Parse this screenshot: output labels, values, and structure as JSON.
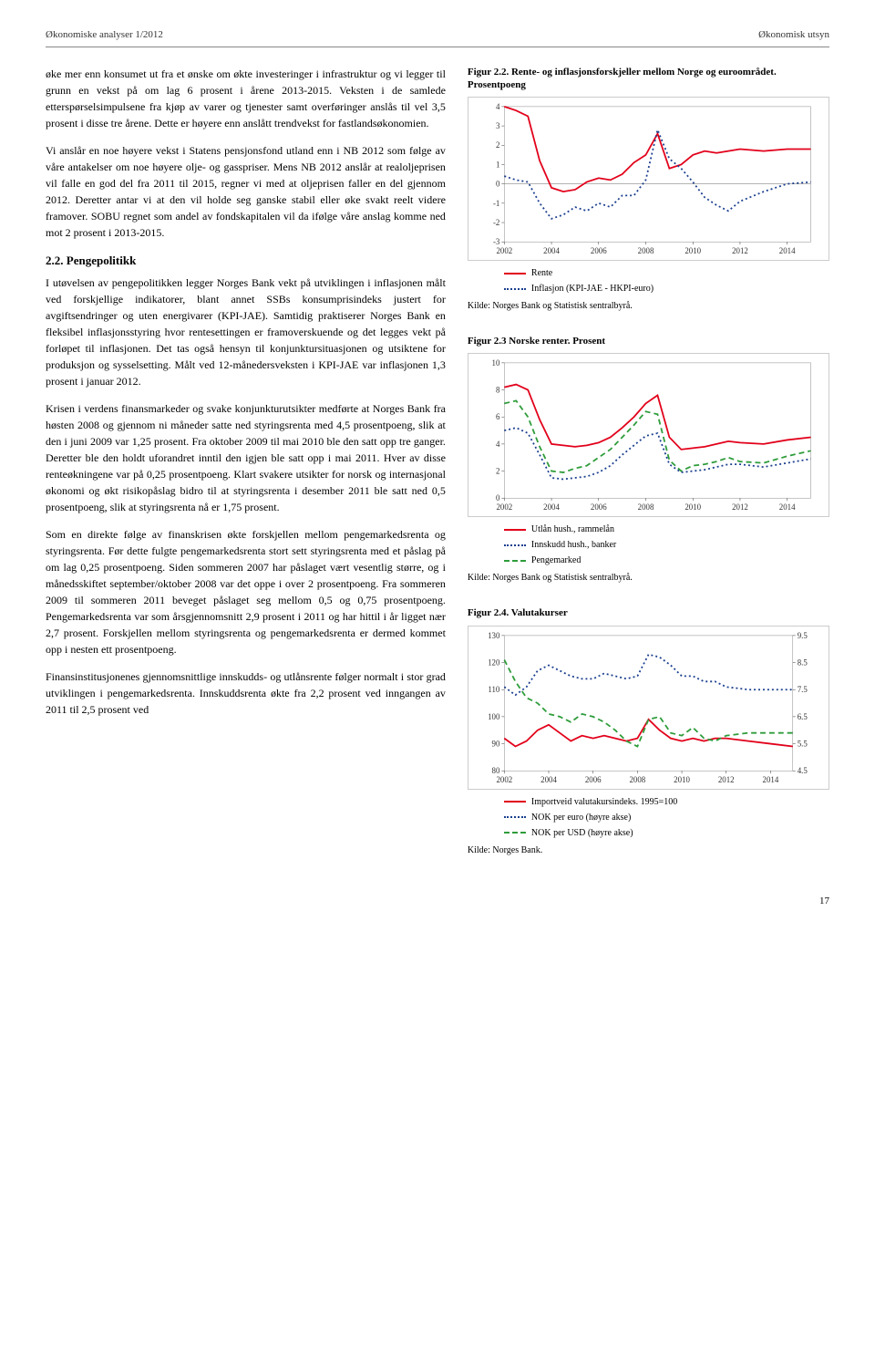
{
  "header": {
    "left": "Økonomiske analyser 1/2012",
    "right": "Økonomisk utsyn"
  },
  "paragraphs": {
    "p1": "øke mer enn konsumet ut fra et ønske om økte investeringer i infrastruktur og vi legger til grunn en vekst på om lag 6 prosent i årene 2013-2015. Veksten i de samlede etterspørselsimpulsene fra kjøp av varer og tjenester samt overføringer anslås til vel 3,5 prosent i disse tre årene. Dette er høyere enn anslått trendvekst for fastlandsøkonomien.",
    "p2": "Vi anslår en noe høyere vekst i Statens pensjonsfond utland enn i NB 2012 som følge av våre antakelser om noe høyere olje- og gasspriser. Mens NB 2012 anslår at realoljeprisen vil falle en god del fra 2011 til 2015, regner vi med at oljeprisen faller en del gjennom 2012. Deretter antar vi at den vil holde seg ganske stabil eller øke svakt reelt videre framover. SOBU regnet som andel av fondskapitalen vil da ifølge våre anslag komme ned mot 2 prosent i 2013-2015.",
    "h22": "2.2. Pengepolitikk",
    "p3": "I utøvelsen av pengepolitikken legger Norges Bank vekt på utviklingen i inflasjonen målt ved forskjellige indikatorer, blant annet SSBs konsumprisindeks justert for avgiftsendringer og uten energivarer (KPI-JAE). Samtidig praktiserer Norges Bank en fleksibel inflasjonsstyring hvor rentesettingen er framoverskuende og det legges vekt på forløpet til inflasjonen. Det tas også hensyn til konjunktursituasjonen og utsiktene for produksjon og sysselsetting. Målt ved 12-månedersveksten i KPI-JAE var inflasjonen 1,3 prosent i januar 2012.",
    "p4": "Krisen i verdens finansmarkeder og svake konjunkturutsikter medførte at Norges Bank fra høsten 2008 og gjennom ni måneder satte ned styringsrenta med 4,5 prosentpoeng, slik at den i juni 2009 var 1,25 prosent. Fra oktober 2009 til mai 2010 ble den satt opp tre ganger. Deretter ble den holdt uforandret inntil den igjen ble satt opp i mai 2011. Hver av disse renteøkningene var på 0,25 prosentpoeng. Klart svakere utsikter for norsk og internasjonal økonomi og økt risikopåslag bidro til at styringsrenta i desember 2011 ble satt ned 0,5 prosentpoeng, slik at styringsrenta nå er 1,75 prosent.",
    "p5": "Som en direkte følge av finanskrisen økte forskjellen mellom pengemarkedsrenta og styringsrenta. Før dette fulgte pengemarkedsrenta stort sett styringsrenta med et påslag på om lag 0,25 prosentpoeng. Siden sommeren 2007 har påslaget vært vesentlig større, og i månedsskiftet september/oktober 2008 var det oppe i over 2 prosentpoeng. Fra sommeren 2009 til sommeren 2011 beveget påslaget seg mellom 0,5 og 0,75 prosentpoeng. Pengemarkedsrenta var som årsgjennomsnitt 2,9 prosent i 2011 og har hittil i år ligget nær 2,7 prosent. Forskjellen mellom styringsrenta og pengemarkedsrenta er dermed kommet opp i nesten ett prosentpoeng.",
    "p6": "Finansinstitusjonenes gjennomsnittlige innskudds- og utlånsrente følger normalt i stor grad utviklingen i pengemarkedsrenta. Innskuddsrenta økte fra 2,2 prosent ved inngangen av 2011 til 2,5 prosent ved"
  },
  "chart22": {
    "title": "Figur 2.2. Rente- og inflasjonsforskjeller mellom Norge og euroområdet. Prosentpoeng",
    "ylim": [
      -3,
      4
    ],
    "yticks": [
      -3,
      -2,
      -1,
      0,
      1,
      2,
      3,
      4
    ],
    "xticks": [
      "2002",
      "2004",
      "2006",
      "2008",
      "2010",
      "2012",
      "2014"
    ],
    "series": [
      {
        "name": "Rente",
        "color": "#e2001a",
        "style": "solid",
        "points": [
          [
            2002,
            4
          ],
          [
            2002.5,
            3.8
          ],
          [
            2003,
            3.5
          ],
          [
            2003.5,
            1.2
          ],
          [
            2004,
            -0.2
          ],
          [
            2004.5,
            -0.4
          ],
          [
            2005,
            -0.3
          ],
          [
            2005.5,
            0.1
          ],
          [
            2006,
            0.3
          ],
          [
            2006.5,
            0.2
          ],
          [
            2007,
            0.5
          ],
          [
            2007.5,
            1.1
          ],
          [
            2008,
            1.5
          ],
          [
            2008.5,
            2.6
          ],
          [
            2009,
            0.8
          ],
          [
            2009.5,
            1.0
          ],
          [
            2010,
            1.5
          ],
          [
            2010.5,
            1.7
          ],
          [
            2011,
            1.6
          ],
          [
            2011.5,
            1.7
          ],
          [
            2012,
            1.8
          ],
          [
            2013,
            1.7
          ],
          [
            2014,
            1.8
          ],
          [
            2015,
            1.8
          ]
        ]
      },
      {
        "name": "Inflasjon (KPI-JAE - HKPI-euro)",
        "color": "#1b3f8f",
        "style": "dotted",
        "points": [
          [
            2002,
            0.4
          ],
          [
            2002.5,
            0.2
          ],
          [
            2003,
            0.1
          ],
          [
            2003.5,
            -1.0
          ],
          [
            2004,
            -1.8
          ],
          [
            2004.5,
            -1.6
          ],
          [
            2005,
            -1.2
          ],
          [
            2005.5,
            -1.4
          ],
          [
            2006,
            -1.0
          ],
          [
            2006.5,
            -1.2
          ],
          [
            2007,
            -0.6
          ],
          [
            2007.5,
            -0.6
          ],
          [
            2008,
            0.2
          ],
          [
            2008.5,
            2.8
          ],
          [
            2009,
            1.3
          ],
          [
            2009.5,
            0.8
          ],
          [
            2010,
            0.1
          ],
          [
            2010.5,
            -0.7
          ],
          [
            2011,
            -1.1
          ],
          [
            2011.5,
            -1.4
          ],
          [
            2012,
            -0.9
          ],
          [
            2013,
            -0.4
          ],
          [
            2014,
            0.0
          ],
          [
            2015,
            0.1
          ]
        ]
      }
    ],
    "legend": [
      {
        "label": "Rente",
        "color": "#e2001a",
        "style": "solid"
      },
      {
        "label": "Inflasjon (KPI-JAE - HKPI-euro)",
        "color": "#1b3f8f",
        "style": "dotted"
      }
    ],
    "source": "Kilde: Norges Bank og Statistisk sentralbyrå."
  },
  "chart23": {
    "title": "Figur 2.3 Norske renter. Prosent",
    "ylim": [
      0,
      10
    ],
    "yticks": [
      0,
      2,
      4,
      6,
      8,
      10
    ],
    "xticks": [
      "2002",
      "2004",
      "2006",
      "2008",
      "2010",
      "2012",
      "2014"
    ],
    "series": [
      {
        "name": "Utlån hush., rammelån",
        "color": "#e2001a",
        "style": "solid",
        "points": [
          [
            2002,
            8.2
          ],
          [
            2002.5,
            8.4
          ],
          [
            2003,
            8.0
          ],
          [
            2003.5,
            5.8
          ],
          [
            2004,
            4.0
          ],
          [
            2004.5,
            3.9
          ],
          [
            2005,
            3.8
          ],
          [
            2005.5,
            3.9
          ],
          [
            2006,
            4.1
          ],
          [
            2006.5,
            4.5
          ],
          [
            2007,
            5.2
          ],
          [
            2007.5,
            6.0
          ],
          [
            2008,
            7.0
          ],
          [
            2008.5,
            7.6
          ],
          [
            2009,
            4.5
          ],
          [
            2009.5,
            3.6
          ],
          [
            2010,
            3.7
          ],
          [
            2010.5,
            3.8
          ],
          [
            2011,
            4.0
          ],
          [
            2011.5,
            4.2
          ],
          [
            2012,
            4.1
          ],
          [
            2013,
            4.0
          ],
          [
            2014,
            4.3
          ],
          [
            2015,
            4.5
          ]
        ]
      },
      {
        "name": "Innskudd hush., banker",
        "color": "#1b3f8f",
        "style": "dotted",
        "points": [
          [
            2002,
            5.0
          ],
          [
            2002.5,
            5.2
          ],
          [
            2003,
            4.8
          ],
          [
            2003.5,
            3.2
          ],
          [
            2004,
            1.5
          ],
          [
            2004.5,
            1.4
          ],
          [
            2005,
            1.5
          ],
          [
            2005.5,
            1.6
          ],
          [
            2006,
            1.9
          ],
          [
            2006.5,
            2.4
          ],
          [
            2007,
            3.2
          ],
          [
            2007.5,
            3.9
          ],
          [
            2008,
            4.6
          ],
          [
            2008.5,
            4.8
          ],
          [
            2009,
            2.5
          ],
          [
            2009.5,
            1.9
          ],
          [
            2010,
            2.0
          ],
          [
            2010.5,
            2.1
          ],
          [
            2011,
            2.3
          ],
          [
            2011.5,
            2.5
          ],
          [
            2012,
            2.5
          ],
          [
            2013,
            2.3
          ],
          [
            2014,
            2.6
          ],
          [
            2015,
            2.9
          ]
        ]
      },
      {
        "name": "Pengemarked",
        "color": "#2e9c3a",
        "style": "dashed",
        "points": [
          [
            2002,
            7.0
          ],
          [
            2002.5,
            7.2
          ],
          [
            2003,
            6.0
          ],
          [
            2003.5,
            3.8
          ],
          [
            2004,
            2.0
          ],
          [
            2004.5,
            1.9
          ],
          [
            2005,
            2.2
          ],
          [
            2005.5,
            2.4
          ],
          [
            2006,
            3.0
          ],
          [
            2006.5,
            3.6
          ],
          [
            2007,
            4.5
          ],
          [
            2007.5,
            5.4
          ],
          [
            2008,
            6.4
          ],
          [
            2008.5,
            6.2
          ],
          [
            2009,
            2.8
          ],
          [
            2009.5,
            2.0
          ],
          [
            2010,
            2.4
          ],
          [
            2010.5,
            2.5
          ],
          [
            2011,
            2.7
          ],
          [
            2011.5,
            3.0
          ],
          [
            2012,
            2.7
          ],
          [
            2013,
            2.6
          ],
          [
            2014,
            3.1
          ],
          [
            2015,
            3.5
          ]
        ]
      }
    ],
    "legend": [
      {
        "label": "Utlån hush., rammelån",
        "color": "#e2001a",
        "style": "solid"
      },
      {
        "label": "Innskudd hush., banker",
        "color": "#1b3f8f",
        "style": "dotted"
      },
      {
        "label": "Pengemarked",
        "color": "#2e9c3a",
        "style": "dashed"
      }
    ],
    "source": "Kilde: Norges Bank og Statistisk sentralbyrå."
  },
  "chart24": {
    "title": "Figur 2.4. Valutakurser",
    "ylim_left": [
      80,
      130
    ],
    "yticks_left": [
      80,
      90,
      100,
      110,
      120,
      130
    ],
    "ylim_right": [
      4.5,
      9.5
    ],
    "yticks_right": [
      4.5,
      5.5,
      6.5,
      7.5,
      8.5,
      9.5
    ],
    "xticks": [
      "2002",
      "2004",
      "2006",
      "2008",
      "2010",
      "2012",
      "2014"
    ],
    "series": [
      {
        "name": "Importveid valutakursindeks. 1995=100",
        "color": "#e2001a",
        "style": "solid",
        "axis": "left",
        "points": [
          [
            2002,
            92
          ],
          [
            2002.5,
            89
          ],
          [
            2003,
            91
          ],
          [
            2003.5,
            95
          ],
          [
            2004,
            97
          ],
          [
            2004.5,
            94
          ],
          [
            2005,
            91
          ],
          [
            2005.5,
            93
          ],
          [
            2006,
            92
          ],
          [
            2006.5,
            93
          ],
          [
            2007,
            92
          ],
          [
            2007.5,
            91
          ],
          [
            2008,
            92
          ],
          [
            2008.5,
            99
          ],
          [
            2009,
            95
          ],
          [
            2009.5,
            92
          ],
          [
            2010,
            91
          ],
          [
            2010.5,
            92
          ],
          [
            2011,
            91
          ],
          [
            2011.5,
            92
          ],
          [
            2012,
            92
          ],
          [
            2013,
            91
          ],
          [
            2014,
            90
          ],
          [
            2015,
            89
          ]
        ]
      },
      {
        "name": "NOK per euro (høyre akse)",
        "color": "#1b3f8f",
        "style": "dotted",
        "axis": "right",
        "points": [
          [
            2002,
            7.6
          ],
          [
            2002.5,
            7.3
          ],
          [
            2003,
            7.6
          ],
          [
            2003.5,
            8.2
          ],
          [
            2004,
            8.4
          ],
          [
            2004.5,
            8.2
          ],
          [
            2005,
            8.0
          ],
          [
            2005.5,
            7.9
          ],
          [
            2006,
            7.9
          ],
          [
            2006.5,
            8.1
          ],
          [
            2007,
            8.0
          ],
          [
            2007.5,
            7.9
          ],
          [
            2008,
            8.0
          ],
          [
            2008.5,
            8.8
          ],
          [
            2009,
            8.7
          ],
          [
            2009.5,
            8.4
          ],
          [
            2010,
            8.0
          ],
          [
            2010.5,
            8.0
          ],
          [
            2011,
            7.8
          ],
          [
            2011.5,
            7.8
          ],
          [
            2012,
            7.6
          ],
          [
            2013,
            7.5
          ],
          [
            2014,
            7.5
          ],
          [
            2015,
            7.5
          ]
        ]
      },
      {
        "name": "NOK per USD (høyre akse)",
        "color": "#2e9c3a",
        "style": "dashed",
        "axis": "right",
        "points": [
          [
            2002,
            8.6
          ],
          [
            2002.5,
            7.8
          ],
          [
            2003,
            7.2
          ],
          [
            2003.5,
            7.0
          ],
          [
            2004,
            6.6
          ],
          [
            2004.5,
            6.5
          ],
          [
            2005,
            6.3
          ],
          [
            2005.5,
            6.6
          ],
          [
            2006,
            6.5
          ],
          [
            2006.5,
            6.3
          ],
          [
            2007,
            6.0
          ],
          [
            2007.5,
            5.6
          ],
          [
            2008,
            5.4
          ],
          [
            2008.5,
            6.4
          ],
          [
            2009,
            6.5
          ],
          [
            2009.5,
            5.9
          ],
          [
            2010,
            5.8
          ],
          [
            2010.5,
            6.1
          ],
          [
            2011,
            5.7
          ],
          [
            2011.5,
            5.6
          ],
          [
            2012,
            5.8
          ],
          [
            2013,
            5.9
          ],
          [
            2014,
            5.9
          ],
          [
            2015,
            5.9
          ]
        ]
      }
    ],
    "legend": [
      {
        "label": "Importveid valutakursindeks. 1995=100",
        "color": "#e2001a",
        "style": "solid"
      },
      {
        "label": "NOK per euro (høyre akse)",
        "color": "#1b3f8f",
        "style": "dotted"
      },
      {
        "label": "NOK per USD (høyre akse)",
        "color": "#2e9c3a",
        "style": "dashed"
      }
    ],
    "source": "Kilde: Norges Bank."
  },
  "page_num": "17"
}
